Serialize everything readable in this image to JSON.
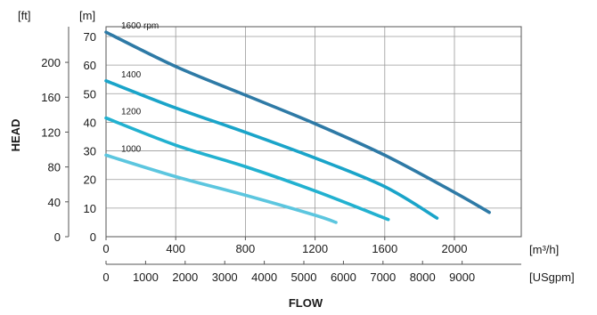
{
  "chart_data": {
    "type": "line",
    "xlabel": "FLOW",
    "ylabel": "HEAD",
    "x_unit": "[m³/h]",
    "x2_unit": "[USgpm]",
    "y_unit": "[m]",
    "y2_unit": "[ft]",
    "xlim": [
      0,
      2400
    ],
    "ylim": [
      0,
      75
    ],
    "x_ticks": [
      "0",
      "400",
      "800",
      "1200",
      "1600",
      "2000"
    ],
    "x2_ticks": [
      "0",
      "1000",
      "2000",
      "3000",
      "4000",
      "5000",
      "6000",
      "7000",
      "8000",
      "9000"
    ],
    "y_ticks": [
      "0",
      "10",
      "20",
      "30",
      "40",
      "50",
      "60",
      "70"
    ],
    "y2_ticks": [
      "0",
      "40",
      "80",
      "120",
      "160",
      "200"
    ],
    "grid": true,
    "series": [
      {
        "name": "1600 rpm",
        "color": "#2e7aa6",
        "x": [
          0,
          400,
          800,
          1200,
          1600,
          2000,
          2200
        ],
        "y": [
          71.5,
          59.5,
          49.5,
          39.5,
          28.5,
          15.5,
          8.5
        ]
      },
      {
        "name": "1400",
        "color": "#1aa4c9",
        "x": [
          0,
          400,
          800,
          1200,
          1600,
          1900
        ],
        "y": [
          54.5,
          45,
          36.5,
          27.5,
          17.5,
          6.5
        ]
      },
      {
        "name": "1200",
        "color": "#22b1d0",
        "x": [
          0,
          400,
          800,
          1200,
          1620
        ],
        "y": [
          41.5,
          32,
          24.5,
          16,
          6
        ]
      },
      {
        "name": "1000",
        "color": "#5cc6df",
        "x": [
          0,
          400,
          800,
          1200,
          1320
        ],
        "y": [
          28.5,
          21,
          14.5,
          7.5,
          5
        ]
      }
    ]
  }
}
